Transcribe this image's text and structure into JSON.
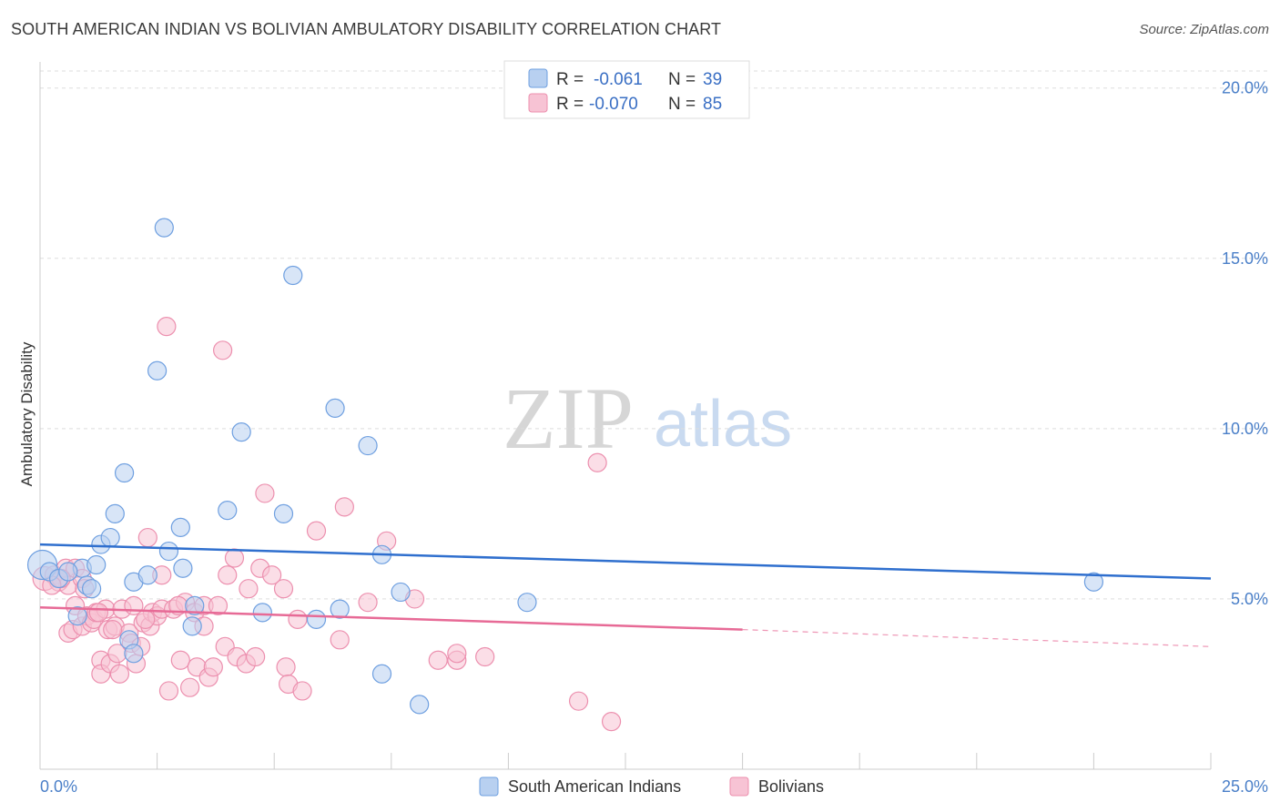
{
  "header": {
    "title": "SOUTH AMERICAN INDIAN VS BOLIVIAN AMBULATORY DISABILITY CORRELATION CHART",
    "source": "Source: ZipAtlas.com"
  },
  "watermark": {
    "zip": "ZIP",
    "atlas": "atlas"
  },
  "legend": {
    "blue": {
      "r_label": "R =",
      "r_value": "-0.061",
      "n_label": "N =",
      "n_value": "39"
    },
    "pink": {
      "r_label": "R =",
      "r_value": "-0.070",
      "n_label": "N =",
      "n_value": "85"
    }
  },
  "colors": {
    "blue_fill": "#b8d0f0",
    "blue_stroke": "#6e9fe0",
    "blue_line": "#2f6fce",
    "pink_fill": "#f7c3d4",
    "pink_stroke": "#ec8fae",
    "pink_line": "#e76a96",
    "tick_text": "#4a7fc8",
    "grid": "#dddddd"
  },
  "chart_data": {
    "type": "scatter",
    "title": "SOUTH AMERICAN INDIAN VS BOLIVIAN AMBULATORY DISABILITY CORRELATION CHART",
    "xlabel": "",
    "ylabel": "Ambulatory Disability",
    "xlim": [
      0,
      25
    ],
    "ylim": [
      0,
      20.5
    ],
    "x_tick_labels": [
      "0.0%",
      "25.0%"
    ],
    "y_ticks": [
      5,
      10,
      15,
      20
    ],
    "y_tick_labels": [
      "5.0%",
      "10.0%",
      "15.0%",
      "20.0%"
    ],
    "series": [
      {
        "name": "South American Indians",
        "color": "#6e9fe0",
        "trend": {
          "x": [
            0,
            25
          ],
          "y": [
            6.6,
            5.6
          ]
        },
        "points": [
          [
            0.05,
            6.0,
            16
          ],
          [
            0.2,
            5.8,
            10
          ],
          [
            0.4,
            5.6,
            10
          ],
          [
            0.9,
            5.9,
            10
          ],
          [
            1.0,
            5.4,
            10
          ],
          [
            0.8,
            4.5,
            10
          ],
          [
            1.1,
            5.3,
            10
          ],
          [
            1.2,
            6.0,
            10
          ],
          [
            1.3,
            6.6,
            10
          ],
          [
            1.5,
            6.8,
            10
          ],
          [
            1.6,
            7.5,
            10
          ],
          [
            1.8,
            8.7,
            10
          ],
          [
            2.0,
            5.5,
            10
          ],
          [
            2.3,
            5.7,
            10
          ],
          [
            2.5,
            11.7,
            10
          ],
          [
            2.65,
            15.9,
            10
          ],
          [
            2.75,
            6.4,
            10
          ],
          [
            3.0,
            7.1,
            10
          ],
          [
            3.05,
            5.9,
            10
          ],
          [
            3.25,
            4.2,
            10
          ],
          [
            3.3,
            4.8,
            10
          ],
          [
            1.9,
            3.8,
            10
          ],
          [
            2.0,
            3.4,
            10
          ],
          [
            4.0,
            7.6,
            10
          ],
          [
            4.3,
            9.9,
            10
          ],
          [
            4.75,
            4.6,
            10
          ],
          [
            5.2,
            7.5,
            10
          ],
          [
            5.4,
            14.5,
            10
          ],
          [
            5.9,
            4.4,
            10
          ],
          [
            6.3,
            10.6,
            10
          ],
          [
            6.4,
            4.7,
            10
          ],
          [
            7.0,
            9.5,
            10
          ],
          [
            7.3,
            6.3,
            10
          ],
          [
            7.7,
            5.2,
            10
          ],
          [
            7.3,
            2.8,
            10
          ],
          [
            8.1,
            1.9,
            10
          ],
          [
            10.4,
            4.9,
            10
          ],
          [
            22.5,
            5.5,
            10
          ],
          [
            0.6,
            5.8,
            10
          ]
        ]
      },
      {
        "name": "Bolivians",
        "color": "#ec8fae",
        "trend": {
          "x": [
            0,
            15
          ],
          "y": [
            4.75,
            4.1
          ]
        },
        "trend_ext": {
          "x": [
            15,
            25
          ],
          "y": [
            4.1,
            3.6
          ]
        },
        "points": [
          [
            0.1,
            5.6,
            13
          ],
          [
            0.3,
            5.7,
            10
          ],
          [
            0.4,
            5.5,
            10
          ],
          [
            0.55,
            5.9,
            10
          ],
          [
            0.6,
            5.4,
            10
          ],
          [
            0.75,
            5.9,
            10
          ],
          [
            0.9,
            5.6,
            10
          ],
          [
            0.6,
            4.0,
            10
          ],
          [
            0.7,
            4.1,
            10
          ],
          [
            0.75,
            4.8,
            10
          ],
          [
            0.9,
            4.2,
            10
          ],
          [
            1.0,
            4.5,
            10
          ],
          [
            1.1,
            4.3,
            10
          ],
          [
            1.15,
            4.4,
            10
          ],
          [
            1.2,
            4.6,
            10
          ],
          [
            1.3,
            3.2,
            10
          ],
          [
            1.3,
            2.8,
            10
          ],
          [
            1.4,
            4.7,
            10
          ],
          [
            1.45,
            4.1,
            10
          ],
          [
            1.5,
            3.1,
            10
          ],
          [
            1.6,
            4.2,
            10
          ],
          [
            1.65,
            3.4,
            10
          ],
          [
            1.7,
            2.8,
            10
          ],
          [
            1.75,
            4.7,
            10
          ],
          [
            1.9,
            4.0,
            10
          ],
          [
            1.95,
            3.7,
            10
          ],
          [
            2.0,
            4.8,
            10
          ],
          [
            2.05,
            3.1,
            10
          ],
          [
            2.15,
            3.6,
            10
          ],
          [
            2.2,
            4.3,
            10
          ],
          [
            2.3,
            6.8,
            10
          ],
          [
            2.35,
            4.2,
            10
          ],
          [
            2.4,
            4.6,
            10
          ],
          [
            2.5,
            4.5,
            10
          ],
          [
            2.6,
            5.7,
            10
          ],
          [
            2.6,
            4.7,
            10
          ],
          [
            2.7,
            13.0,
            10
          ],
          [
            2.75,
            2.3,
            10
          ],
          [
            2.85,
            4.7,
            10
          ],
          [
            3.0,
            3.2,
            10
          ],
          [
            3.1,
            4.9,
            10
          ],
          [
            3.2,
            2.4,
            10
          ],
          [
            3.3,
            4.6,
            10
          ],
          [
            3.35,
            3.0,
            10
          ],
          [
            3.5,
            4.8,
            10
          ],
          [
            3.5,
            4.2,
            10
          ],
          [
            3.6,
            2.7,
            10
          ],
          [
            3.7,
            3.0,
            10
          ],
          [
            3.9,
            12.3,
            10
          ],
          [
            3.95,
            3.6,
            10
          ],
          [
            4.0,
            5.7,
            10
          ],
          [
            4.15,
            6.2,
            10
          ],
          [
            4.2,
            3.3,
            10
          ],
          [
            4.4,
            3.1,
            10
          ],
          [
            4.45,
            5.3,
            10
          ],
          [
            4.6,
            3.3,
            10
          ],
          [
            4.7,
            5.9,
            10
          ],
          [
            4.8,
            8.1,
            10
          ],
          [
            4.95,
            5.7,
            10
          ],
          [
            5.2,
            5.3,
            10
          ],
          [
            5.25,
            3.0,
            10
          ],
          [
            5.3,
            2.5,
            10
          ],
          [
            5.5,
            4.4,
            10
          ],
          [
            5.6,
            2.3,
            10
          ],
          [
            5.9,
            7.0,
            10
          ],
          [
            6.4,
            3.8,
            10
          ],
          [
            6.5,
            7.7,
            10
          ],
          [
            7.0,
            4.9,
            10
          ],
          [
            7.4,
            6.7,
            10
          ],
          [
            8.0,
            5.0,
            10
          ],
          [
            8.5,
            3.2,
            10
          ],
          [
            8.9,
            3.2,
            10
          ],
          [
            8.9,
            3.4,
            10
          ],
          [
            9.5,
            3.3,
            10
          ],
          [
            11.5,
            2.0,
            10
          ],
          [
            11.9,
            9.0,
            10
          ],
          [
            12.2,
            1.4,
            10
          ],
          [
            0.95,
            5.3,
            10
          ],
          [
            0.45,
            5.6,
            10
          ],
          [
            1.55,
            4.1,
            10
          ],
          [
            2.25,
            4.4,
            10
          ],
          [
            0.25,
            5.4,
            10
          ],
          [
            1.25,
            4.6,
            10
          ],
          [
            3.8,
            4.8,
            10
          ],
          [
            2.95,
            4.8,
            10
          ]
        ]
      }
    ]
  }
}
